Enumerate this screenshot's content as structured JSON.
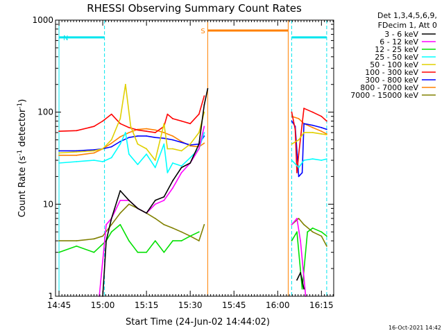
{
  "chart_data": {
    "type": "line",
    "title": "RHESSI Observing Summary Count Rates",
    "xlabel": "Start Time (24-Jun-02 14:44:02)",
    "ylabel_prefix": "Count Rate (s",
    "ylabel_sup1": "-1",
    "ylabel_mid": " detector",
    "ylabel_sup2": "-1",
    "ylabel_suffix": ")",
    "yscale": "log",
    "xlim": [
      14.73,
      16.32
    ],
    "ylim": [
      1,
      1000
    ],
    "x_unit": "hours UT",
    "x_ticks": [
      14.75,
      15.0,
      15.25,
      15.5,
      15.75,
      16.0,
      16.25
    ],
    "x_tick_labels": [
      "14:45",
      "15:00",
      "15:15",
      "15:30",
      "15:45",
      "16:00",
      "16:15"
    ],
    "y_ticks": [
      1,
      10,
      100,
      1000
    ],
    "y_tick_labels": [
      "1",
      "10",
      "100",
      "1000"
    ],
    "legend": {
      "position": "top-right",
      "header": [
        "Det 1,3,4,5,6,9,",
        "FDecim 1, Att 0"
      ]
    },
    "flags": [
      {
        "label": "N",
        "color": "#00e5ee",
        "type": "night",
        "intervals": [
          [
            14.75,
            15.01
          ],
          [
            16.08,
            16.28
          ]
        ],
        "level": 650
      },
      {
        "label": "S",
        "color": "#ff8000",
        "type": "saa",
        "intervals": [
          [
            15.6,
            16.06
          ]
        ],
        "level": 770
      }
    ],
    "vlines": [
      {
        "color": "#00e5ee",
        "style": "dashed",
        "x": 15.01
      },
      {
        "color": "#00e5ee",
        "style": "dashed",
        "x": 16.08
      },
      {
        "color": "#00e5ee",
        "style": "dashed",
        "x": 16.28
      },
      {
        "color": "#00e5ee",
        "style": "solid",
        "x": 14.75
      },
      {
        "color": "#ff8000",
        "style": "solid",
        "x": 15.6
      },
      {
        "color": "#ff8000",
        "style": "solid",
        "x": 16.06
      }
    ],
    "series": [
      {
        "name": "3 - 6 keV",
        "color": "#000000",
        "x": [
          15.0,
          15.02,
          15.05,
          15.1,
          15.15,
          15.2,
          15.25,
          15.3,
          15.35,
          15.4,
          15.45,
          15.5,
          15.55,
          15.58,
          15.6,
          16.11,
          16.13,
          16.15
        ],
        "y": [
          1.0,
          4.0,
          7.0,
          14.0,
          11.0,
          9.0,
          8.0,
          11.0,
          12.0,
          18.0,
          25.0,
          28.0,
          45.0,
          120.0,
          180.0,
          1.5,
          1.8,
          1.2
        ]
      },
      {
        "name": "6 - 12 keV",
        "color": "#ff00ff",
        "x": [
          14.98,
          15.02,
          15.05,
          15.1,
          15.15,
          15.2,
          15.25,
          15.3,
          15.35,
          15.4,
          15.45,
          15.5,
          15.55,
          15.58,
          16.08,
          16.11,
          16.13,
          16.16
        ],
        "y": [
          1.0,
          6.0,
          7.0,
          11.0,
          11.0,
          9.0,
          8.0,
          10.0,
          11.0,
          15.0,
          22.0,
          28.0,
          40.0,
          70.0,
          6.0,
          7.0,
          4.0,
          1.0
        ]
      },
      {
        "name": "12 - 25 keV",
        "color": "#00e000",
        "x": [
          14.75,
          14.85,
          14.95,
          15.02,
          15.05,
          15.1,
          15.15,
          15.2,
          15.25,
          15.3,
          15.35,
          15.4,
          15.45,
          15.5,
          15.55,
          16.08,
          16.11,
          16.14,
          16.17,
          16.2,
          16.25,
          16.28
        ],
        "y": [
          3.0,
          3.5,
          3.0,
          4.0,
          5.0,
          6.0,
          4.0,
          3.0,
          3.0,
          4.0,
          3.0,
          4.0,
          4.0,
          4.5,
          5.0,
          4.0,
          5.0,
          1.2,
          5.0,
          5.5,
          5.0,
          4.5
        ]
      },
      {
        "name": "25 - 50 keV",
        "color": "#00ffff",
        "x": [
          14.75,
          14.85,
          14.95,
          15.0,
          15.05,
          15.1,
          15.13,
          15.15,
          15.2,
          15.25,
          15.3,
          15.35,
          15.37,
          15.4,
          15.45,
          15.5,
          15.55,
          15.58,
          16.08,
          16.12,
          16.15,
          16.2,
          16.25,
          16.28
        ],
        "y": [
          28.0,
          29.0,
          30.0,
          29.0,
          32.0,
          45.0,
          60.0,
          35.0,
          27.0,
          35.0,
          25.0,
          45.0,
          22.0,
          28.0,
          26.0,
          32.0,
          40.0,
          60.0,
          30.0,
          25.0,
          30.0,
          31.0,
          30.0,
          31.0
        ]
      },
      {
        "name": "50 - 100 keV",
        "color": "#e0d000",
        "x": [
          14.75,
          14.85,
          14.95,
          15.0,
          15.05,
          15.1,
          15.13,
          15.16,
          15.2,
          15.25,
          15.3,
          15.35,
          15.37,
          15.4,
          15.45,
          15.5,
          15.55,
          15.58,
          16.08,
          16.12,
          16.15,
          16.2,
          16.25,
          16.28
        ],
        "y": [
          36.0,
          37.0,
          38.0,
          40.0,
          50.0,
          85.0,
          200.0,
          70.0,
          45.0,
          40.0,
          30.0,
          75.0,
          40.0,
          40.0,
          38.0,
          45.0,
          60.0,
          100.0,
          45.0,
          50.0,
          60.0,
          60.0,
          58.0,
          57.0
        ]
      },
      {
        "name": "100 - 300 keV",
        "color": "#ff0000",
        "x": [
          14.75,
          14.85,
          14.95,
          15.0,
          15.05,
          15.1,
          15.15,
          15.2,
          15.25,
          15.3,
          15.35,
          15.37,
          15.4,
          15.45,
          15.5,
          15.55,
          15.58,
          16.08,
          16.1,
          16.11,
          16.12,
          16.15,
          16.2,
          16.25,
          16.28
        ],
        "y": [
          62.0,
          63.0,
          70.0,
          80.0,
          95.0,
          75.0,
          68.0,
          64.0,
          62.0,
          60.0,
          70.0,
          95.0,
          85.0,
          80.0,
          75.0,
          95.0,
          150.0,
          100.0,
          65.0,
          22.0,
          35.0,
          110.0,
          100.0,
          90.0,
          80.0
        ]
      },
      {
        "name": "300 - 800 keV",
        "color": "#0000ff",
        "x": [
          14.75,
          14.85,
          14.95,
          15.0,
          15.05,
          15.1,
          15.15,
          15.2,
          15.25,
          15.3,
          15.35,
          15.4,
          15.45,
          15.5,
          15.55,
          15.58,
          16.08,
          16.1,
          16.12,
          16.14,
          16.15,
          16.2,
          16.25,
          16.28
        ],
        "y": [
          38.0,
          38.0,
          39.0,
          40.0,
          42.0,
          48.0,
          53.0,
          55.0,
          55.0,
          53.0,
          52.0,
          50.0,
          47.0,
          44.0,
          45.0,
          55.0,
          80.0,
          70.0,
          20.0,
          22.0,
          75.0,
          72.0,
          68.0,
          65.0
        ]
      },
      {
        "name": "800 - 7000 keV",
        "color": "#ff8000",
        "x": [
          14.75,
          14.85,
          14.95,
          15.0,
          15.05,
          15.1,
          15.15,
          15.2,
          15.25,
          15.3,
          15.35,
          15.4,
          15.45,
          15.5,
          15.55,
          15.58,
          16.08,
          16.12,
          16.15,
          16.2,
          16.25,
          16.28
        ],
        "y": [
          34.0,
          34.0,
          36.0,
          40.0,
          46.0,
          54.0,
          60.0,
          65.0,
          66.0,
          64.0,
          60.0,
          55.0,
          48.0,
          43.0,
          42.0,
          46.0,
          90.0,
          85.0,
          75.0,
          68.0,
          62.0,
          58.0
        ]
      },
      {
        "name": "7000 - 15000 keV",
        "color": "#808000",
        "x": [
          14.75,
          14.85,
          14.95,
          15.0,
          15.05,
          15.1,
          15.15,
          15.2,
          15.25,
          15.3,
          15.35,
          15.4,
          15.45,
          15.5,
          15.55,
          15.58,
          16.08,
          16.12,
          16.15,
          16.2,
          16.25,
          16.28
        ],
        "y": [
          4.0,
          4.0,
          4.2,
          4.5,
          6.0,
          8.0,
          10.0,
          9.0,
          8.0,
          7.0,
          6.0,
          5.5,
          5.0,
          4.5,
          4.0,
          6.0,
          6.0,
          7.0,
          6.0,
          5.0,
          4.5,
          3.5
        ]
      }
    ]
  },
  "timestamp": "16-Oct-2021 14:42"
}
